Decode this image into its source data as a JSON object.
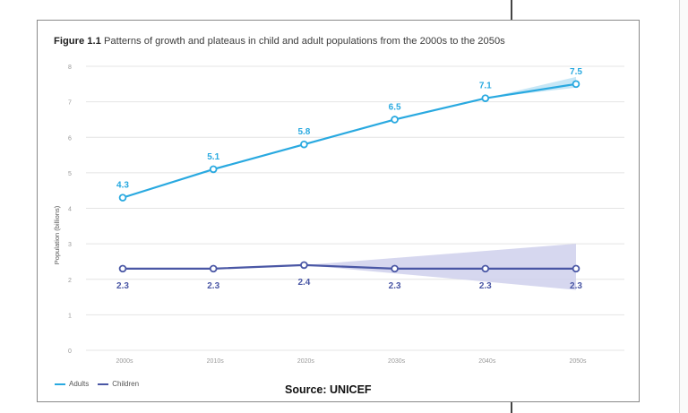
{
  "figure": {
    "label": "Figure 1.1",
    "title": "Patterns of growth and plateaus in child and adult populations from the 2000s to the 2050s",
    "source": "Source: UNICEF"
  },
  "colors": {
    "adults": "#29a9e0",
    "adults_band": "#bde3f5",
    "children": "#4a57a5",
    "children_band": "#cfd0ec",
    "grid": "#e4e4e4",
    "tick_text": "#999999"
  },
  "chart_data": {
    "type": "line",
    "title": "Figure 1.1 Patterns of growth and plateaus in child and adult populations from the 2000s to the 2050s",
    "xlabel": "",
    "ylabel": "Population (billions)",
    "categories": [
      "2000s",
      "2010s",
      "2020s",
      "2030s",
      "2040s",
      "2050s"
    ],
    "ylim": [
      0,
      8
    ],
    "yticks": [
      0,
      1,
      2,
      3,
      4,
      5,
      6,
      7,
      8
    ],
    "grid": true,
    "legend": "bottom-left",
    "series": [
      {
        "name": "Adults",
        "values": [
          4.3,
          5.1,
          5.8,
          6.5,
          7.1,
          7.5
        ],
        "data_labels": [
          "4.3",
          "5.1",
          "5.8",
          "6.5",
          "7.1",
          "7.5"
        ],
        "uncertainty_band": {
          "from": "2040s",
          "low": [
            7.1,
            7.4
          ],
          "high": [
            7.1,
            7.7
          ]
        }
      },
      {
        "name": "Children",
        "values": [
          2.3,
          2.3,
          2.4,
          2.3,
          2.3,
          2.3
        ],
        "data_labels": [
          "2.3",
          "2.3",
          "2.4",
          "2.3",
          "2.3",
          "2.3"
        ],
        "uncertainty_band": {
          "from": "2020s",
          "low": [
            2.4,
            1.7
          ],
          "high": [
            2.4,
            3.0
          ]
        }
      }
    ]
  }
}
